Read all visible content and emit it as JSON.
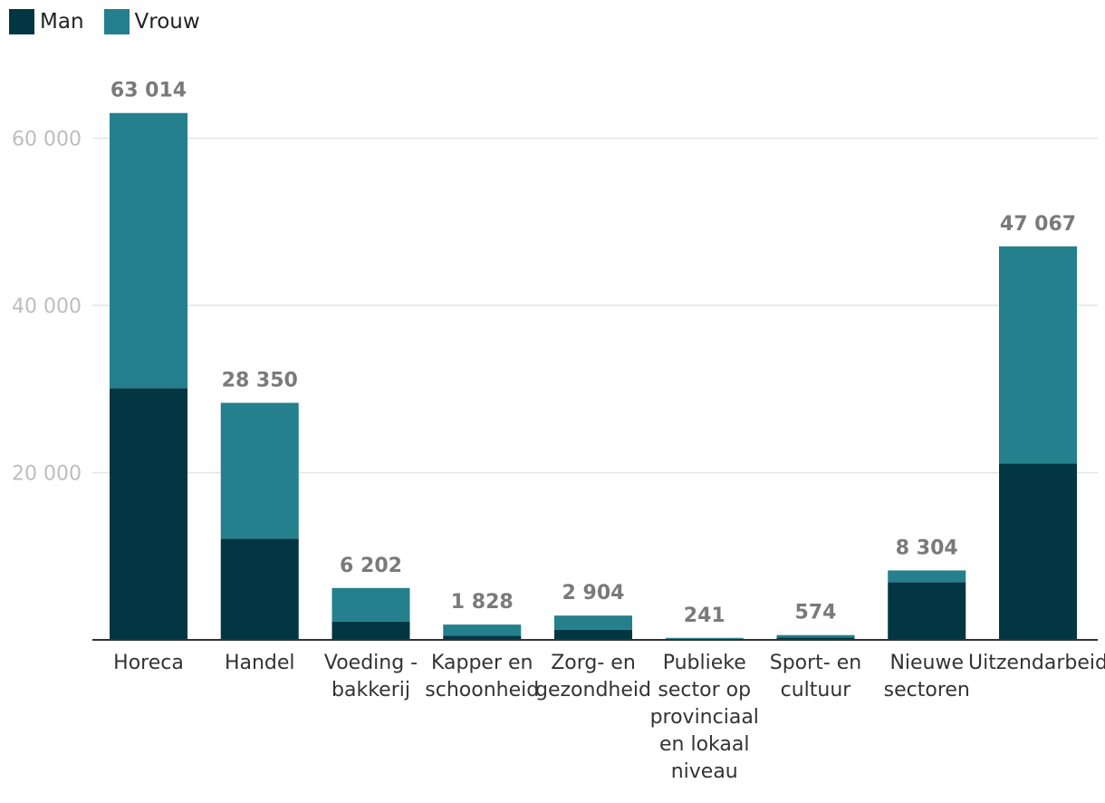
{
  "legend": {
    "items": [
      {
        "label": "Man",
        "color": "#023642"
      },
      {
        "label": "Vrouw",
        "color": "#23808c"
      }
    ]
  },
  "chart_data": {
    "type": "bar",
    "stacked": true,
    "title": "",
    "xlabel": "",
    "ylabel": "",
    "ylim": [
      0,
      66000
    ],
    "yticks": [
      20000,
      40000,
      60000
    ],
    "ytick_labels": [
      "20 000",
      "40 000",
      "60 000"
    ],
    "grid": true,
    "legend_position": "top-left",
    "categories": [
      [
        "Horeca"
      ],
      [
        "Handel"
      ],
      [
        "Voeding -",
        "bakkerij"
      ],
      [
        "Kapper en",
        "schoonheid"
      ],
      [
        "Zorg- en",
        "gezondheid"
      ],
      [
        "Publieke",
        "sector op",
        "provinciaal",
        "en lokaal",
        "niveau"
      ],
      [
        "Sport- en",
        "cultuur"
      ],
      [
        "Nieuwe",
        "sectoren"
      ],
      [
        "Uitzendarbeid"
      ]
    ],
    "series": [
      {
        "name": "Man",
        "color": "#023642",
        "values": [
          30100,
          12100,
          2200,
          500,
          1200,
          120,
          300,
          6900,
          21100
        ]
      },
      {
        "name": "Vrouw",
        "color": "#23808c",
        "values": [
          32914,
          16250,
          4002,
          1328,
          1704,
          121,
          274,
          1404,
          25967
        ]
      }
    ],
    "totals": [
      63014,
      28350,
      6202,
      1828,
      2904,
      241,
      574,
      8304,
      47067
    ],
    "total_labels": [
      "63 014",
      "28 350",
      "6 202",
      "1 828",
      "2 904",
      "241",
      "574",
      "8 304",
      "47 067"
    ]
  }
}
